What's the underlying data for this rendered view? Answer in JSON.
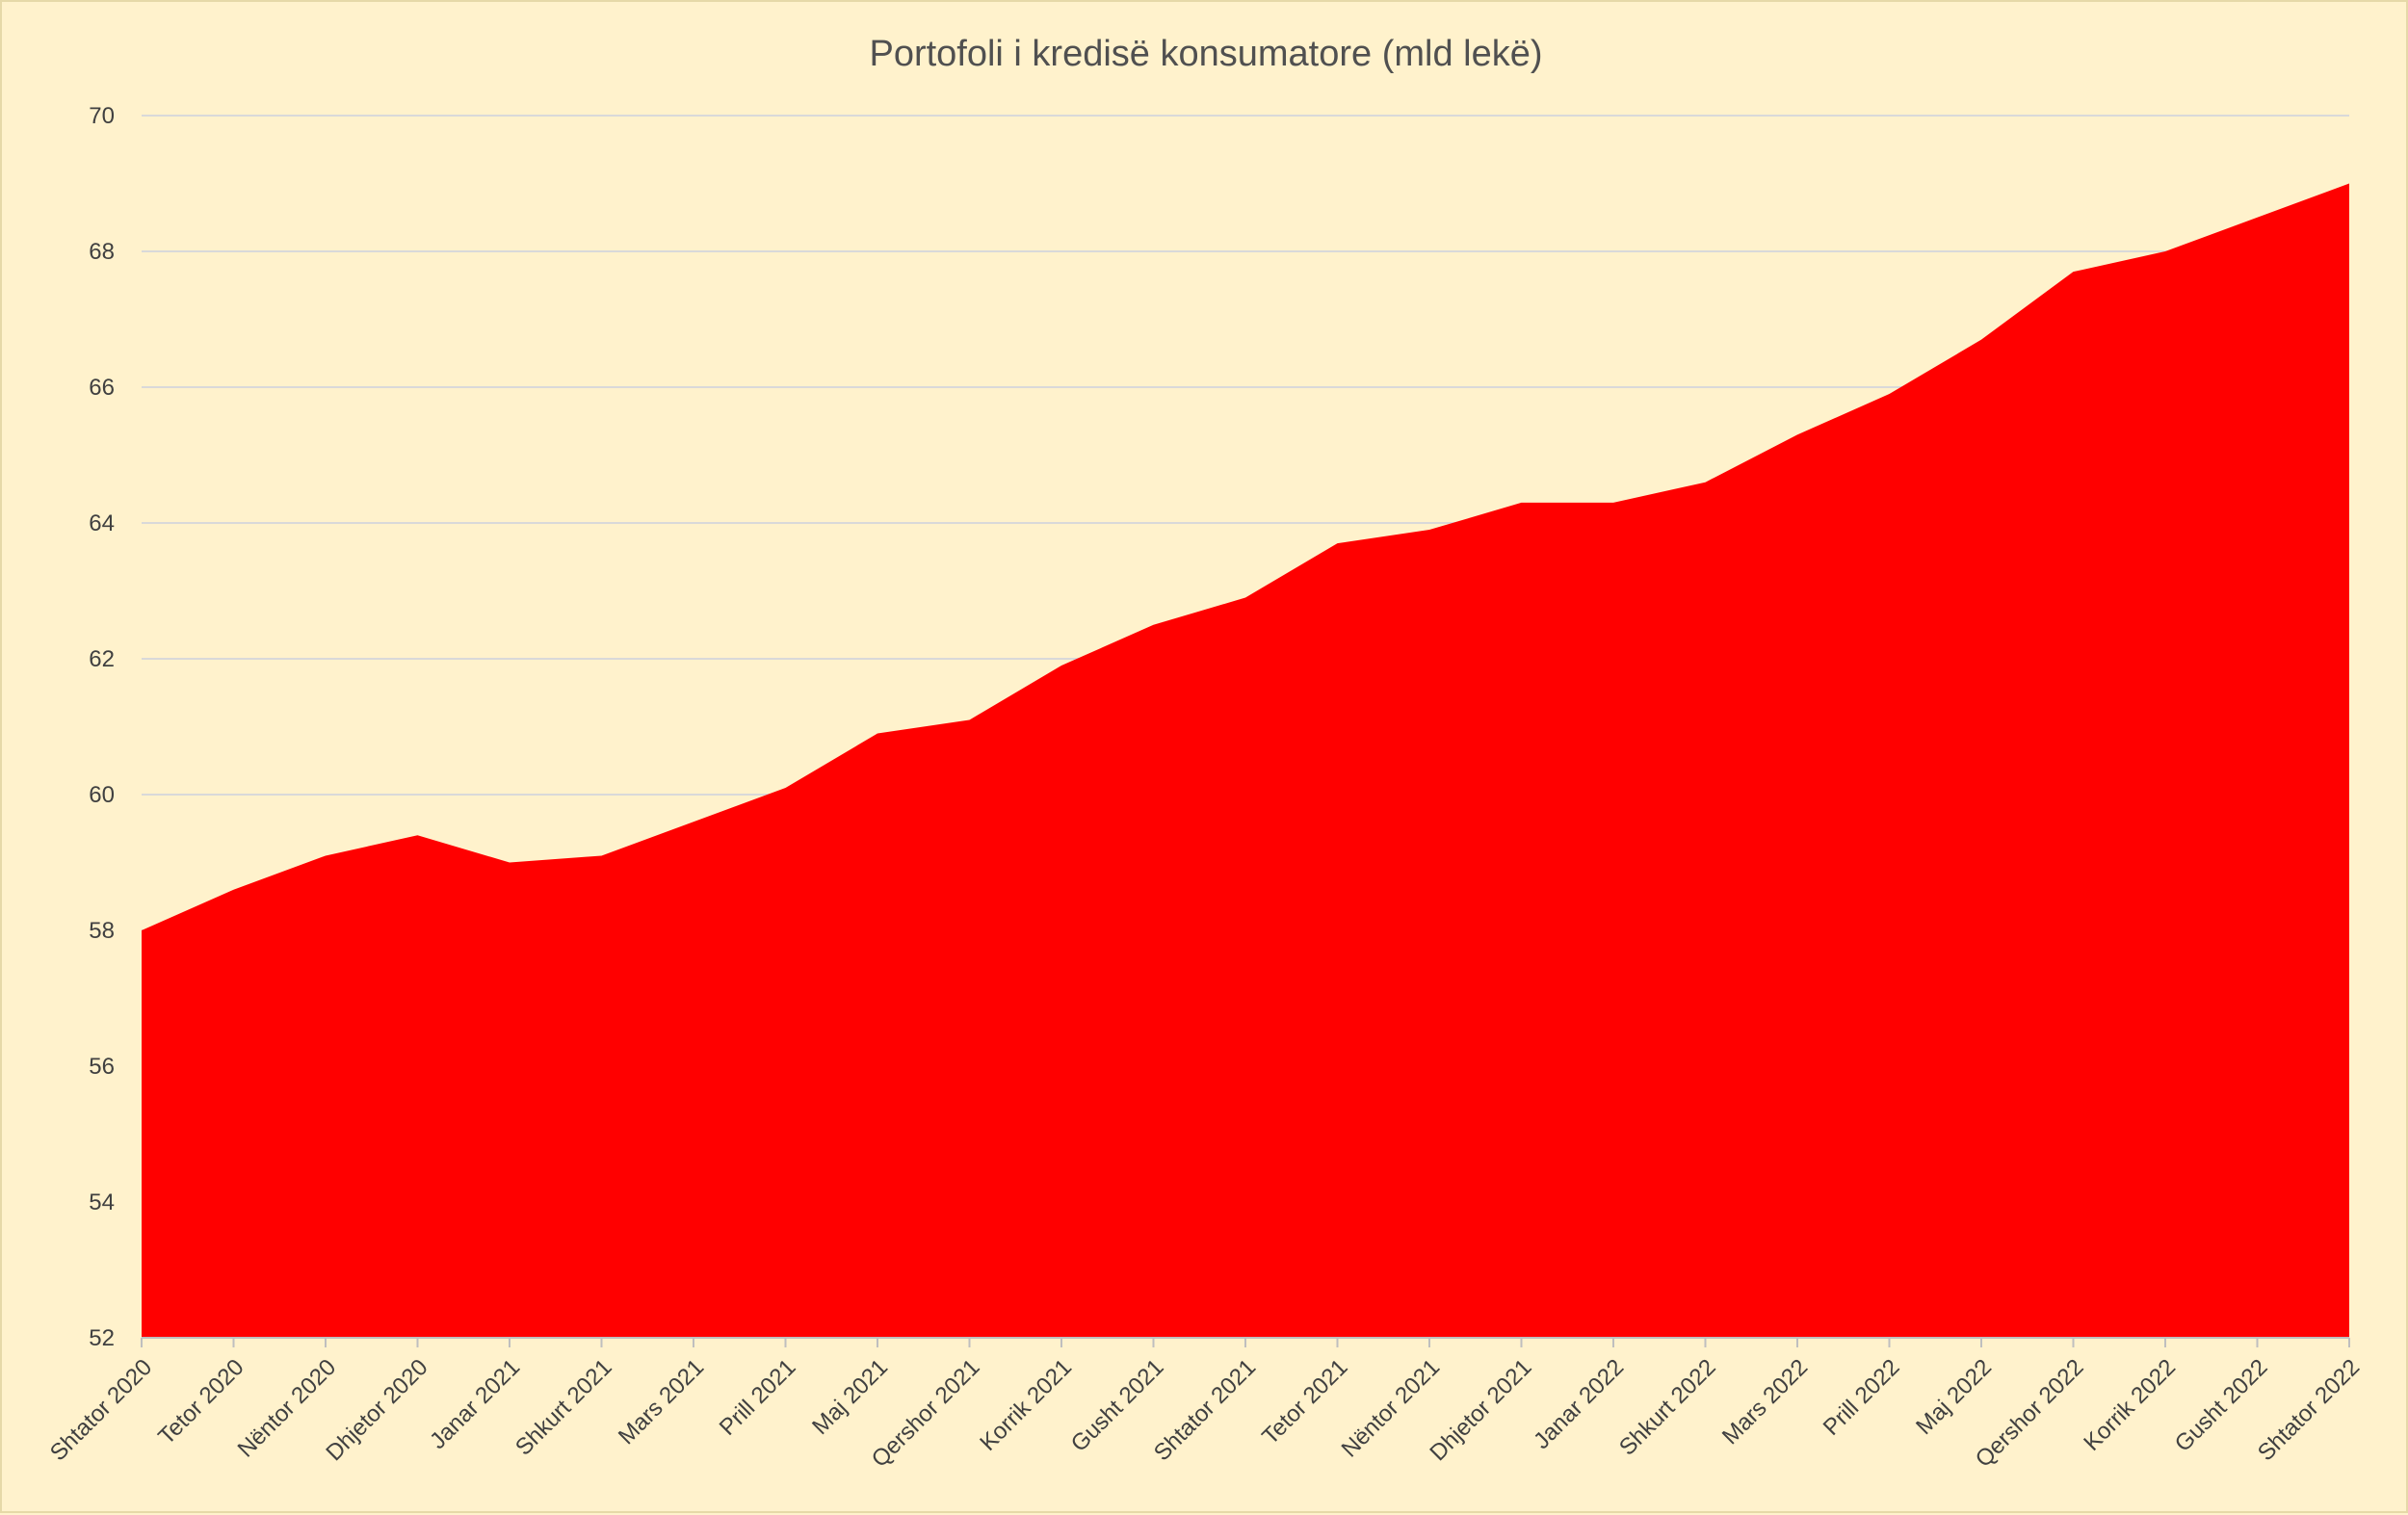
{
  "chart_data": {
    "type": "area",
    "title": "Portofoli i kredisë konsumatore (mld lekë)",
    "xlabel": "",
    "ylabel": "",
    "categories": [
      "Shtator 2020",
      "Tetor 2020",
      "Nëntor 2020",
      "Dhjetor 2020",
      "Janar 2021",
      "Shkurt 2021",
      "Mars 2021",
      "Prill 2021",
      "Maj 2021",
      "Qershor 2021",
      "Korrik 2021",
      "Gusht 2021",
      "Shtator 2021",
      "Tetor 2021",
      "Nëntor 2021",
      "Dhjetor 2021",
      "Janar 2022",
      "Shkurt 2022",
      "Mars 2022",
      "Prill 2022",
      "Maj 2022",
      "Qershor 2022",
      "Korrik 2022",
      "Gusht 2022",
      "Shtator 2022"
    ],
    "series": [
      {
        "values": [
          58.0,
          58.6,
          59.1,
          59.4,
          59.0,
          59.1,
          59.6,
          60.1,
          60.9,
          61.1,
          61.9,
          62.5,
          62.9,
          63.7,
          63.9,
          64.3,
          64.3,
          64.6,
          65.3,
          65.9,
          66.7,
          67.7,
          68.0,
          68.5,
          69.0
        ],
        "color": "#ff0000"
      }
    ],
    "ylim": [
      52,
      70
    ],
    "yticks": [
      52,
      54,
      56,
      58,
      60,
      62,
      64,
      66,
      68,
      70
    ],
    "grid": true,
    "legend": "none",
    "colors": {
      "background": "#fff2cc",
      "area": "#ff0000",
      "gridline": "#d9d9d9",
      "axis": "#bfbfbf",
      "text": "#404040"
    }
  }
}
